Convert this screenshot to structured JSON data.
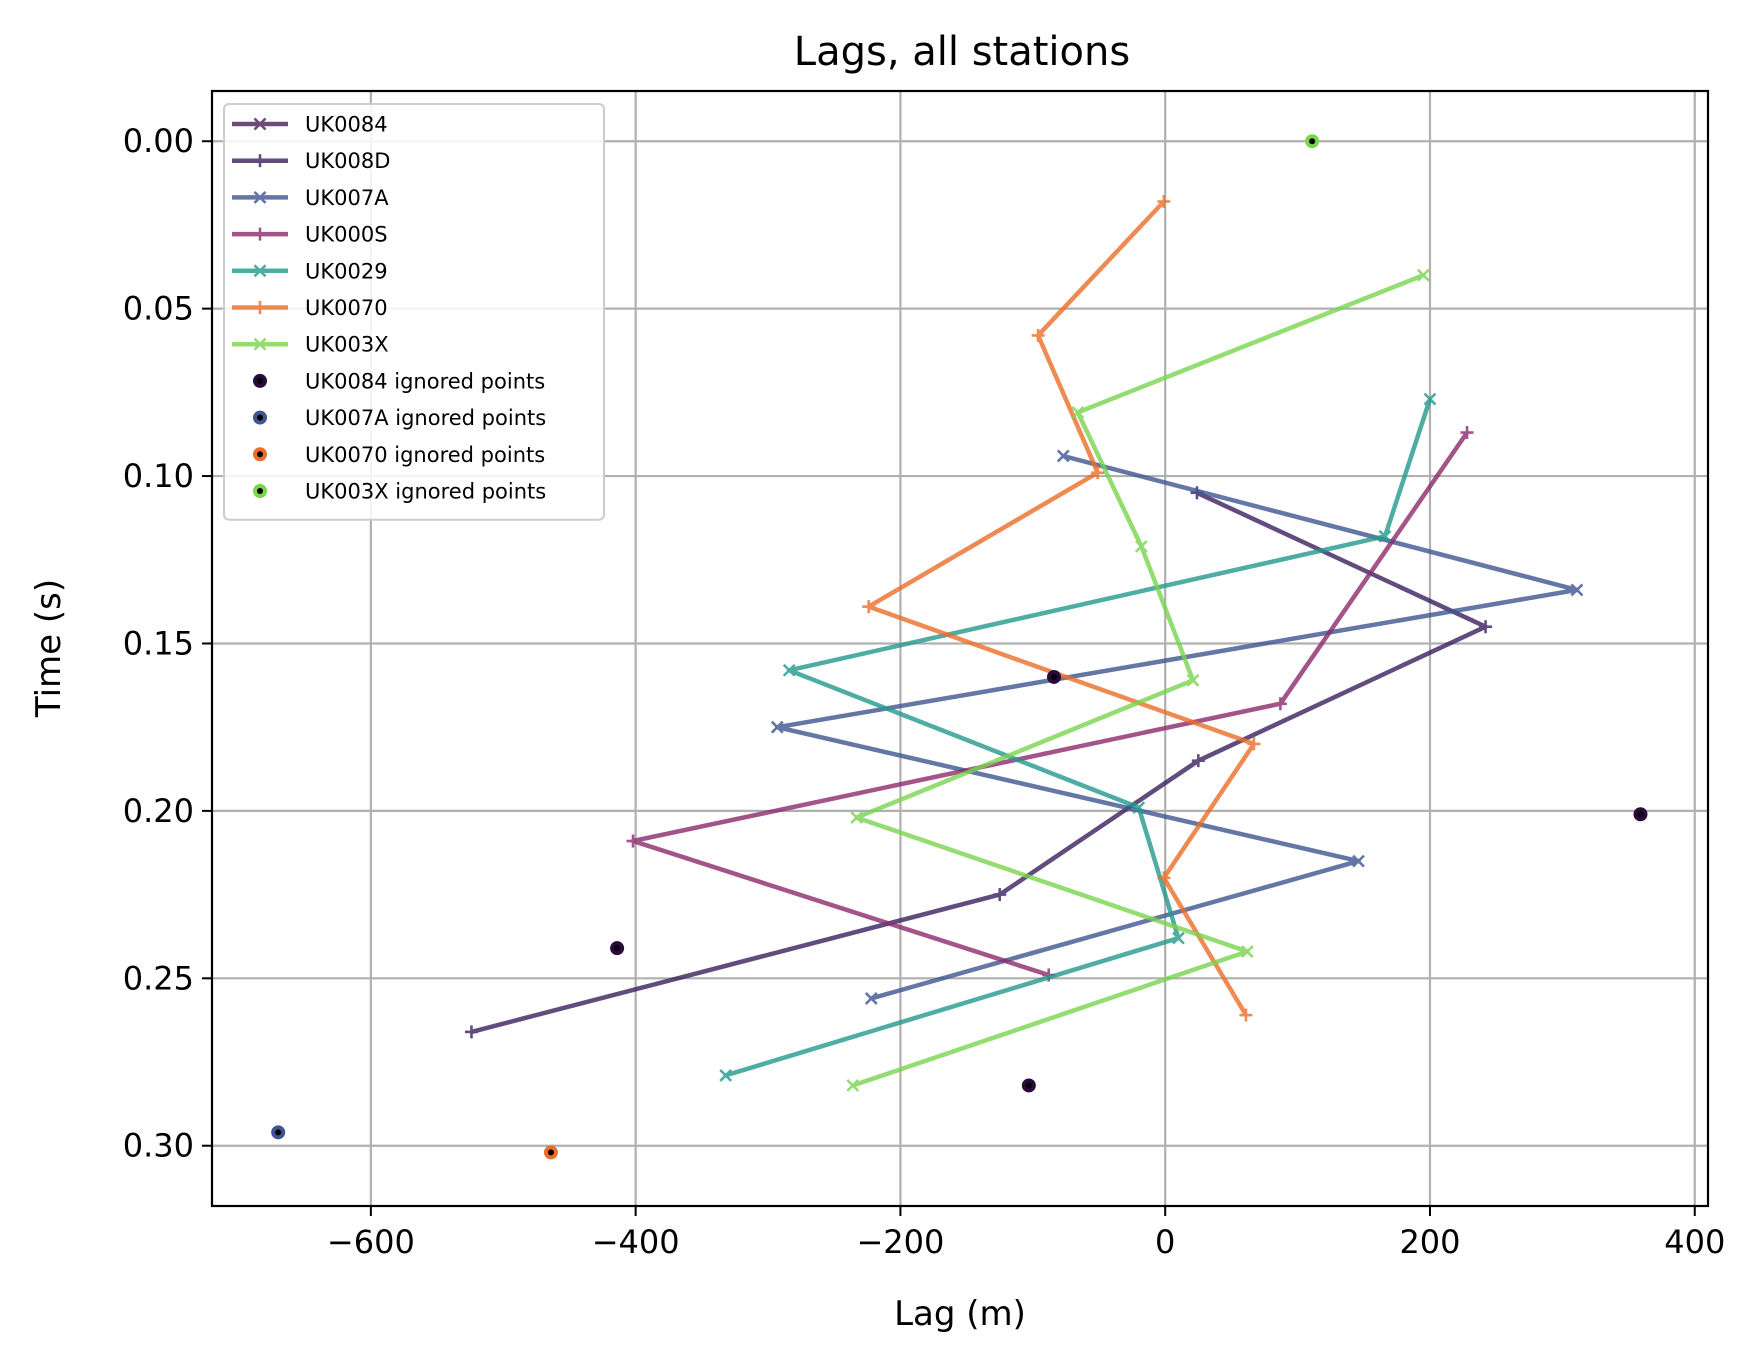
{
  "chart_data": {
    "type": "line",
    "title": "Lags, all stations",
    "xlabel": "Lag (m)",
    "ylabel": "Time (s)",
    "xlim": [
      -720,
      410
    ],
    "ylim": [
      0.318,
      -0.015
    ],
    "y_inverted": true,
    "grid": true,
    "legend_position": "top-left",
    "xticks": [
      -600,
      -400,
      -200,
      0,
      200,
      400
    ],
    "xtick_labels": [
      "−600",
      "−400",
      "−200",
      "0",
      "200",
      "400"
    ],
    "yticks": [
      0.0,
      0.05,
      0.1,
      0.15,
      0.2,
      0.25,
      0.3
    ],
    "ytick_labels": [
      "0.00",
      "0.05",
      "0.10",
      "0.15",
      "0.20",
      "0.25",
      "0.30"
    ],
    "series": [
      {
        "name": "UK0084",
        "color": "#4a1f59",
        "marker": "x",
        "points": []
      },
      {
        "name": "UK008D",
        "color": "#3b1f5e",
        "marker": "+",
        "points": [
          [
            24,
            0.105
          ],
          [
            242,
            0.145
          ],
          [
            25,
            0.185
          ],
          [
            -125,
            0.225
          ],
          [
            -524,
            0.266
          ]
        ]
      },
      {
        "name": "UK007A",
        "color": "#3e5590",
        "marker": "x",
        "points": [
          [
            -77,
            0.094
          ],
          [
            311,
            0.134
          ],
          [
            -293,
            0.175
          ],
          [
            146,
            0.215
          ],
          [
            -222,
            0.256
          ]
        ]
      },
      {
        "name": "UK000S",
        "color": "#8c2a6c",
        "marker": "+",
        "points": [
          [
            228,
            0.087
          ],
          [
            87,
            0.168
          ],
          [
            -402,
            0.209
          ],
          [
            -88,
            0.249
          ]
        ]
      },
      {
        "name": "UK0029",
        "color": "#23998c",
        "marker": "x",
        "points": [
          [
            200,
            0.077
          ],
          [
            166,
            0.118
          ],
          [
            -284,
            0.158
          ],
          [
            -20,
            0.199
          ],
          [
            10,
            0.238
          ],
          [
            -332,
            0.279
          ]
        ]
      },
      {
        "name": "UK0070",
        "color": "#ec6d28",
        "marker": "+",
        "points": [
          [
            -1,
            0.018
          ],
          [
            -96,
            0.058
          ],
          [
            -51,
            0.099
          ],
          [
            -224,
            0.139
          ],
          [
            67,
            0.18
          ],
          [
            -1,
            0.22
          ],
          [
            61,
            0.261
          ]
        ]
      },
      {
        "name": "UK003X",
        "color": "#79d44e",
        "marker": "x",
        "points": [
          [
            195,
            0.04
          ],
          [
            -66,
            0.081
          ],
          [
            -18,
            0.121
          ],
          [
            21,
            0.161
          ],
          [
            -233,
            0.202
          ],
          [
            62,
            0.242
          ],
          [
            -236,
            0.282
          ]
        ]
      }
    ],
    "ignored_series": [
      {
        "name": "UK0084 ignored points",
        "color": "#2a0a3d",
        "points": [
          [
            -84,
            0.16
          ],
          [
            359,
            0.201
          ],
          [
            -414,
            0.241
          ],
          [
            -103,
            0.282
          ]
        ]
      },
      {
        "name": "UK007A ignored points",
        "color": "#3e5590",
        "points": [
          [
            -670,
            0.296
          ]
        ]
      },
      {
        "name": "UK0070 ignored points",
        "color": "#ec6d28",
        "points": [
          [
            -464,
            0.302
          ]
        ]
      },
      {
        "name": "UK003X ignored points",
        "color": "#79d44e",
        "points": [
          [
            111,
            0.0
          ]
        ]
      }
    ]
  }
}
